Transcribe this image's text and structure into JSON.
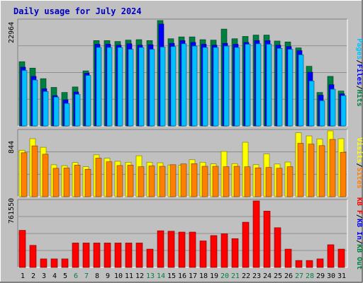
{
  "title": "Daily usage for July 2024",
  "colors": {
    "background": "#c0c0c0",
    "title": "#0000c0",
    "hits": "#008040",
    "files": "#0000ff",
    "pages": "#00c0ff",
    "visits": "#ffff00",
    "sites": "#ff8000",
    "kbin": "#0000ff",
    "kbout": "#008040",
    "kbf": "#ff0000",
    "weekend": "#008040",
    "weekday": "#000000"
  },
  "chart_data": [
    {
      "type": "bar",
      "panel": "hits-files-pages",
      "y_max_label": "22964",
      "ylim": [
        0,
        22964
      ],
      "right_labels": [
        "Pages",
        "/",
        "Files",
        "/",
        "Hits"
      ],
      "categories": [
        "1",
        "2",
        "3",
        "4",
        "5",
        "6",
        "7",
        "8",
        "9",
        "10",
        "11",
        "12",
        "13",
        "14",
        "15",
        "16",
        "17",
        "18",
        "19",
        "20",
        "21",
        "22",
        "23",
        "24",
        "25",
        "26",
        "27",
        "28",
        "29",
        "30",
        "31"
      ],
      "series": [
        {
          "name": "Hits",
          "values": [
            14000,
            12600,
            10300,
            8400,
            7300,
            8500,
            12000,
            18600,
            18600,
            18400,
            18700,
            18800,
            18600,
            22964,
            19000,
            19400,
            19400,
            18800,
            18700,
            21100,
            19000,
            19500,
            19800,
            19800,
            18500,
            18300,
            17000,
            13000,
            7300,
            10800,
            7600
          ]
        },
        {
          "name": "Files",
          "values": [
            12800,
            10800,
            8100,
            6600,
            5700,
            7400,
            11500,
            17800,
            17800,
            17600,
            17900,
            17600,
            17700,
            22200,
            18000,
            18600,
            18200,
            17800,
            17600,
            18000,
            17800,
            18200,
            18600,
            18600,
            17600,
            17300,
            16400,
            11700,
            6700,
            9000,
            7000
          ]
        },
        {
          "name": "Pages",
          "values": [
            12100,
            10000,
            7500,
            6300,
            4900,
            6900,
            11000,
            17100,
            17100,
            17100,
            16700,
            17100,
            16700,
            17200,
            17300,
            17900,
            17400,
            17100,
            17100,
            17400,
            17100,
            17800,
            17900,
            17800,
            16900,
            16700,
            15500,
            9800,
            5500,
            8000,
            6600
          ]
        }
      ]
    },
    {
      "type": "bar",
      "panel": "visits-sites",
      "y_max_label": "844",
      "ylim": [
        0,
        844
      ],
      "right_labels": [
        "Visits",
        "/",
        "Sites"
      ],
      "categories": [
        "1",
        "2",
        "3",
        "4",
        "5",
        "6",
        "7",
        "8",
        "9",
        "10",
        "11",
        "12",
        "13",
        "14",
        "15",
        "16",
        "17",
        "18",
        "19",
        "20",
        "21",
        "22",
        "23",
        "24",
        "25",
        "26",
        "27",
        "28",
        "29",
        "30",
        "31"
      ],
      "series": [
        {
          "name": "Visits",
          "values": [
            596,
            744,
            634,
            409,
            398,
            438,
            384,
            537,
            493,
            454,
            442,
            525,
            442,
            435,
            407,
            405,
            474,
            442,
            420,
            580,
            424,
            698,
            410,
            548,
            419,
            444,
            820,
            780,
            740,
            844,
            744
          ]
        },
        {
          "name": "Sites",
          "values": [
            564,
            652,
            545,
            364,
            368,
            405,
            352,
            495,
            448,
            400,
            405,
            385,
            395,
            390,
            410,
            420,
            424,
            390,
            390,
            385,
            390,
            384,
            370,
            375,
            365,
            385,
            685,
            675,
            655,
            735,
            570
          ]
        }
      ]
    },
    {
      "type": "bar",
      "panel": "kbytes",
      "y_max_label": "761550",
      "ylim": [
        0,
        761550
      ],
      "right_labels": [
        "KB F",
        "/",
        "KB In",
        "/",
        "KB Out"
      ],
      "categories": [
        "1",
        "2",
        "3",
        "4",
        "5",
        "6",
        "7",
        "8",
        "9",
        "10",
        "11",
        "12",
        "13",
        "14",
        "15",
        "16",
        "17",
        "18",
        "19",
        "20",
        "21",
        "22",
        "23",
        "24",
        "25",
        "26",
        "27",
        "28",
        "29",
        "30",
        "31"
      ],
      "series": [
        {
          "name": "KB F",
          "values": [
            425000,
            253000,
            98000,
            98000,
            98000,
            280000,
            280000,
            280000,
            280000,
            280000,
            280000,
            280000,
            210000,
            420000,
            415000,
            405000,
            405000,
            304000,
            365000,
            385000,
            330000,
            518000,
            761550,
            645000,
            455000,
            210000,
            80000,
            80000,
            98000,
            260000,
            210000
          ]
        }
      ],
      "x_label_colors": [
        "weekday",
        "weekday",
        "weekday",
        "weekday",
        "weekday",
        "weekend",
        "weekend",
        "weekday",
        "weekday",
        "weekday",
        "weekday",
        "weekday",
        "weekend",
        "weekend",
        "weekday",
        "weekday",
        "weekday",
        "weekday",
        "weekday",
        "weekend",
        "weekend",
        "weekday",
        "weekday",
        "weekday",
        "weekday",
        "weekday",
        "weekend",
        "weekend",
        "weekday",
        "weekday",
        "weekday"
      ]
    }
  ]
}
